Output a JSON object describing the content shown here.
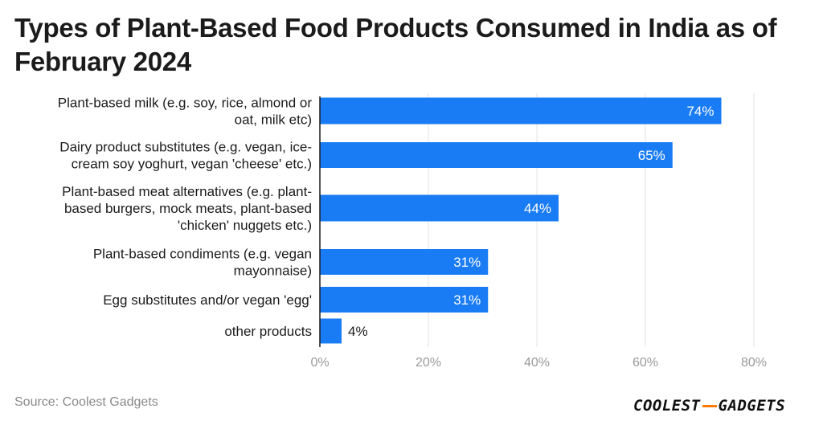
{
  "title": "Types of Plant-Based Food Products Consumed in India as of February 2024",
  "source": "Source: Coolest Gadgets",
  "logo": {
    "left": "COOLEST",
    "right": "GADGETS",
    "accent_color": "#ff7a00"
  },
  "colors": {
    "bar": "#1a7cf5",
    "grid": "#e3e3e3",
    "axis": "#1b1b1b",
    "tick_label": "#9a9a9a",
    "label_inside": "#ffffff",
    "label_outside": "#1b1b1b"
  },
  "chart_data": {
    "type": "bar",
    "orientation": "horizontal",
    "title": "Types of Plant-Based Food Products Consumed in India as of February 2024",
    "categories": [
      [
        "Plant-based milk (e.g. soy, rice, almond or",
        "oat, milk etc)"
      ],
      [
        "Dairy product substitutes (e.g. vegan, ice-",
        "cream soy yoghurt, vegan 'cheese' etc.)"
      ],
      [
        "Plant-based meat alternatives (e.g. plant-",
        "based burgers, mock meats, plant-based",
        "'chicken' nuggets etc.)"
      ],
      [
        "Plant-based condiments (e.g. vegan",
        "mayonnaise)"
      ],
      [
        "Egg substitutes and/or vegan 'egg'"
      ],
      [
        "other products"
      ]
    ],
    "values": [
      74,
      65,
      44,
      31,
      31,
      4
    ],
    "value_labels": [
      "74%",
      "65%",
      "44%",
      "31%",
      "31%",
      "4%"
    ],
    "xlim": [
      0,
      80
    ],
    "xticks": [
      0,
      20,
      40,
      60,
      80
    ],
    "xtick_labels": [
      "0%",
      "20%",
      "40%",
      "60%",
      "80%"
    ],
    "xlabel": "",
    "ylabel": "",
    "grid": true
  }
}
